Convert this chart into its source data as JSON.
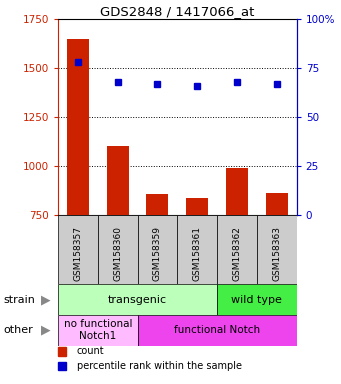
{
  "title": "GDS2848 / 1417066_at",
  "samples": [
    "GSM158357",
    "GSM158360",
    "GSM158359",
    "GSM158361",
    "GSM158362",
    "GSM158363"
  ],
  "counts": [
    1650,
    1100,
    855,
    835,
    990,
    860
  ],
  "percentiles": [
    78,
    68,
    67,
    66,
    68,
    67
  ],
  "ylim_left": [
    750,
    1750
  ],
  "ylim_right": [
    0,
    100
  ],
  "yticks_left": [
    750,
    1000,
    1250,
    1500,
    1750
  ],
  "yticks_right": [
    0,
    25,
    50,
    75,
    100
  ],
  "bar_color": "#cc2200",
  "dot_color": "#0000cc",
  "bar_bottom": 750,
  "strain_labels": [
    {
      "label": "transgenic",
      "span": [
        0,
        4
      ],
      "color": "#bbffbb"
    },
    {
      "label": "wild type",
      "span": [
        4,
        6
      ],
      "color": "#44ee44"
    }
  ],
  "other_labels": [
    {
      "label": "no functional\nNotch1",
      "span": [
        0,
        2
      ],
      "color": "#ffbbff"
    },
    {
      "label": "functional Notch",
      "span": [
        2,
        6
      ],
      "color": "#ee44ee"
    }
  ],
  "legend_items": [
    {
      "label": "count",
      "color": "#cc2200"
    },
    {
      "label": "percentile rank within the sample",
      "color": "#0000cc"
    }
  ],
  "grid_lines": [
    1000,
    1250,
    1500
  ],
  "left_axis_color": "#cc2200",
  "right_axis_color": "#0000cc",
  "sample_box_color": "#cccccc",
  "right_ytick_labels": [
    "0",
    "25",
    "50",
    "75",
    "100%"
  ]
}
